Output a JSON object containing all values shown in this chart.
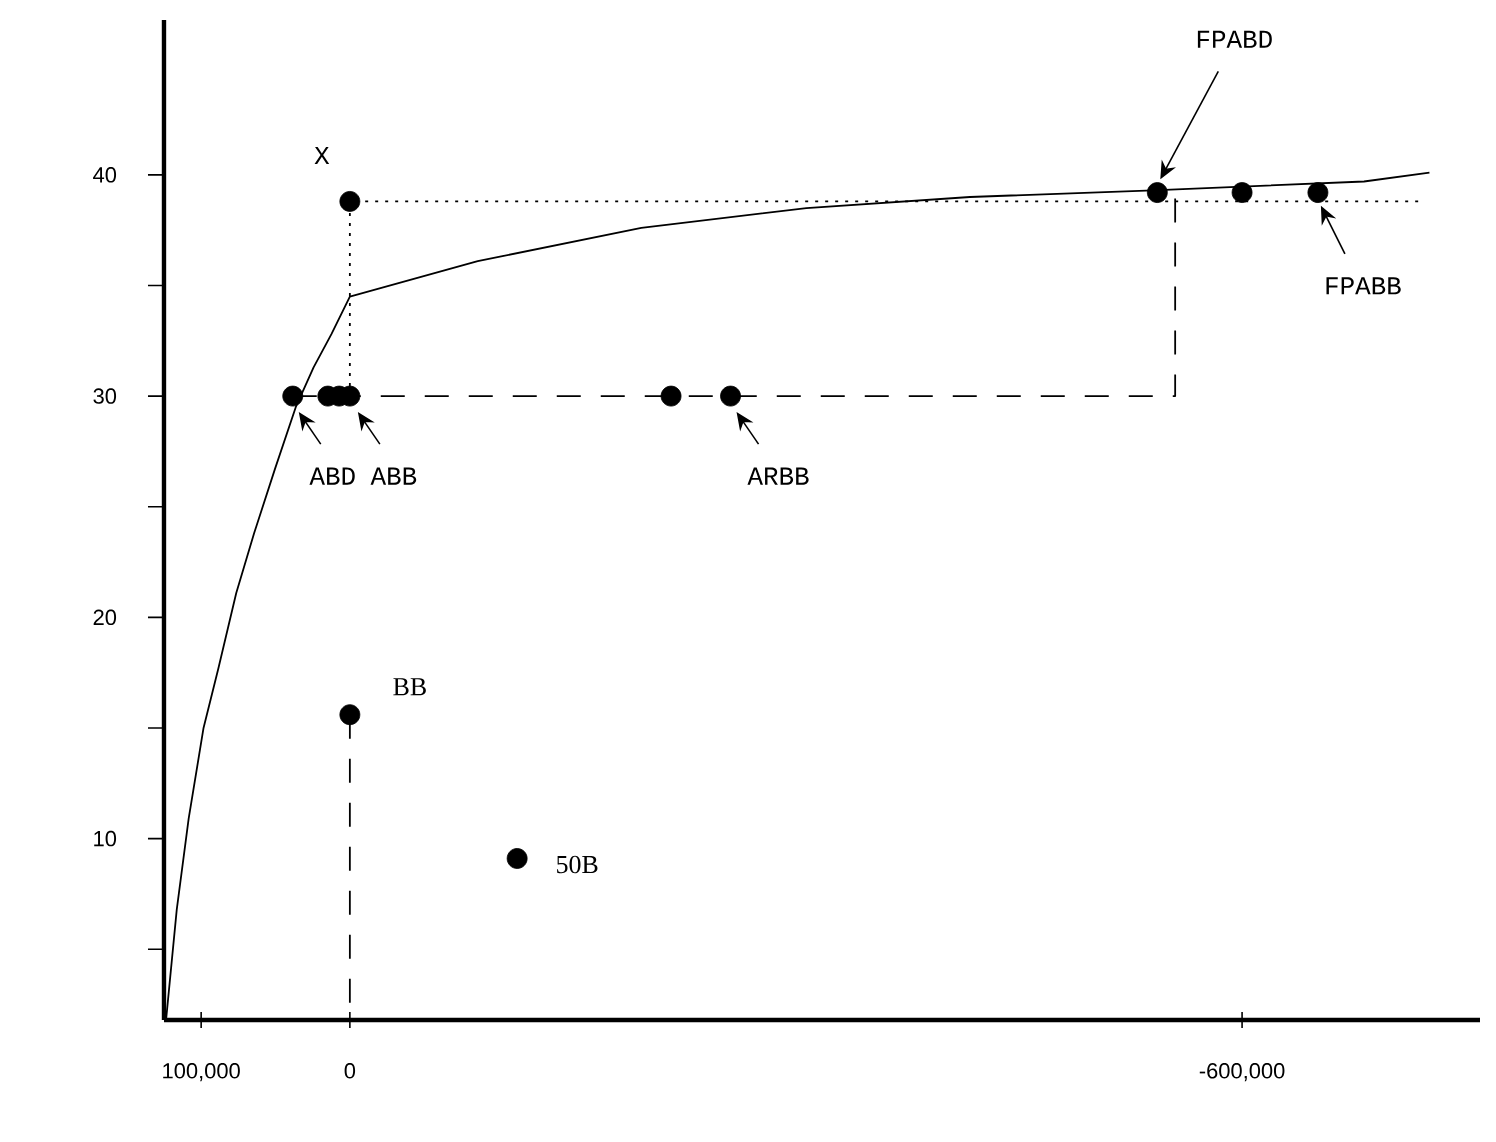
{
  "chart_data": {
    "type": "line",
    "xlim": [
      125000,
      -760000
    ],
    "ylim": [
      1.8,
      47
    ],
    "xticks": [
      {
        "value": 100000,
        "label": "100,000"
      },
      0,
      {
        "value": -600000,
        "label": "-600,000"
      }
    ],
    "yticks": [
      {
        "value": 5,
        "label": null
      },
      10,
      {
        "value": 15,
        "label": null
      },
      20,
      {
        "value": 25,
        "label": null
      },
      30,
      {
        "value": 35,
        "label": null
      },
      40
    ],
    "series": [
      {
        "color": "#000000",
        "line_style": "solid",
        "x": [
          123600,
          116400,
          108400,
          98400,
          88400,
          76400,
          64400,
          50400,
          36400,
          24400,
          12400,
          0,
          -86000,
          -196000,
          -307000,
          -417000,
          -540000,
          -682000,
          -726000
        ],
        "values": [
          1.8,
          6.8,
          10.9,
          15.0,
          17.7,
          21.1,
          23.8,
          26.7,
          29.5,
          31.3,
          32.8,
          34.5,
          36.1,
          37.6,
          38.5,
          39.0,
          39.3,
          39.7,
          40.1
        ]
      },
      {
        "type": "line",
        "color": "#000000",
        "line_style": "dashed",
        "x": [
          38400,
          -555000,
          -555000
        ],
        "values": [
          30,
          30,
          39.2
        ]
      },
      {
        "type": "line",
        "color": "#000000",
        "line_style": "dashed",
        "x": [
          0,
          0
        ],
        "values": [
          15.6,
          1.8
        ]
      },
      {
        "type": "line",
        "color": "#000000",
        "line_style": "dotted",
        "x": [
          0,
          0,
          -720000
        ],
        "values": [
          30,
          38.8,
          38.8
        ]
      },
      {
        "type": "scatter",
        "color": "#000000",
        "marker": "circle",
        "x": [
          38400,
          14800,
          7200,
          0,
          -216000,
          -256000,
          -543000,
          -600000,
          -651000,
          0,
          0,
          -112500
        ],
        "values": [
          30,
          30,
          30,
          30,
          30,
          30,
          39.2,
          39.2,
          39.2,
          38.8,
          15.6,
          9.1
        ]
      }
    ],
    "annotations": [
      {
        "text": "X",
        "x": 0,
        "y": 38.8
      },
      {
        "text": "ABD",
        "x": 38400,
        "y": 30
      },
      {
        "text": "ABB",
        "x": 0,
        "y": 30
      },
      {
        "text": "ARBB",
        "x": -256000,
        "y": 30
      },
      {
        "text": "FPABD",
        "x": -545000,
        "y": 39.8
      },
      {
        "text": "FPABB",
        "x": -653000,
        "y": 38.6
      },
      {
        "text": "BB",
        "x": 0,
        "y": 15.6
      },
      {
        "text": "50B",
        "x": -112500,
        "y": 9.1
      }
    ]
  }
}
